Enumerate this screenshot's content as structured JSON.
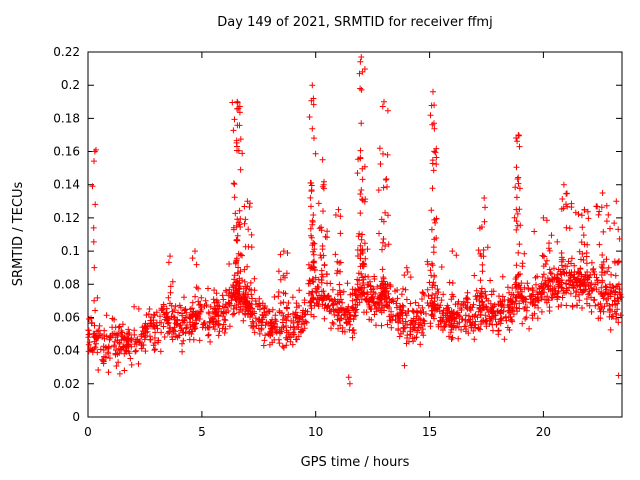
{
  "window": {
    "background": "#ffffff"
  },
  "chart_data": {
    "type": "scatter",
    "title": "Day 149 of 2021, SRMTID for receiver ffmj",
    "xlabel": "GPS time / hours",
    "ylabel": "SRMTID / TECUs",
    "xlim": [
      0,
      23.45
    ],
    "ylim": [
      0,
      0.22
    ],
    "grid": false,
    "legend": "none",
    "xticks": {
      "values": [
        0,
        5,
        10,
        15,
        20
      ],
      "labels": [
        "0",
        "5",
        "10",
        "15",
        "20"
      ]
    },
    "yticks": {
      "values": [
        0,
        0.02,
        0.04,
        0.06,
        0.08,
        0.1,
        0.12,
        0.14,
        0.16,
        0.18,
        0.2,
        0.22
      ],
      "labels": [
        "0",
        "0.02",
        "0.04",
        "0.06",
        "0.08",
        "0.1",
        "0.12",
        "0.14",
        "0.16",
        "0.18",
        "0.2",
        "0.22"
      ]
    },
    "marker": {
      "shape": "plus",
      "color": "#ff0000",
      "size": 7
    },
    "colors": {
      "frame": "#000000",
      "text": "#000000",
      "background": "#ffffff"
    },
    "point_model": {
      "seed": 149,
      "n_base": 1650,
      "x_range": [
        0,
        23.42
      ],
      "spread": 0.012,
      "tail_prob": 0.1,
      "tail_gain": 0.035,
      "y_min": 0.02,
      "y_max": 0.218,
      "baseline_knots": [
        [
          0.0,
          0.05
        ],
        [
          0.5,
          0.046
        ],
        [
          1.0,
          0.043
        ],
        [
          1.5,
          0.044
        ],
        [
          2.0,
          0.046
        ],
        [
          2.5,
          0.05
        ],
        [
          3.0,
          0.053
        ],
        [
          3.5,
          0.056
        ],
        [
          4.0,
          0.056
        ],
        [
          4.5,
          0.058
        ],
        [
          5.0,
          0.058
        ],
        [
          5.5,
          0.06
        ],
        [
          6.0,
          0.062
        ],
        [
          6.5,
          0.075
        ],
        [
          7.0,
          0.068
        ],
        [
          7.5,
          0.058
        ],
        [
          8.0,
          0.055
        ],
        [
          8.5,
          0.056
        ],
        [
          9.0,
          0.055
        ],
        [
          9.5,
          0.06
        ],
        [
          10.0,
          0.075
        ],
        [
          10.5,
          0.068
        ],
        [
          11.0,
          0.065
        ],
        [
          11.5,
          0.058
        ],
        [
          12.0,
          0.075
        ],
        [
          12.5,
          0.07
        ],
        [
          13.0,
          0.072
        ],
        [
          13.5,
          0.062
        ],
        [
          14.0,
          0.055
        ],
        [
          14.5,
          0.055
        ],
        [
          15.0,
          0.068
        ],
        [
          15.5,
          0.062
        ],
        [
          16.0,
          0.058
        ],
        [
          16.5,
          0.06
        ],
        [
          17.0,
          0.062
        ],
        [
          17.5,
          0.066
        ],
        [
          18.0,
          0.062
        ],
        [
          18.5,
          0.066
        ],
        [
          19.0,
          0.072
        ],
        [
          19.5,
          0.07
        ],
        [
          20.0,
          0.074
        ],
        [
          20.5,
          0.078
        ],
        [
          21.0,
          0.08
        ],
        [
          21.5,
          0.08
        ],
        [
          22.0,
          0.078
        ],
        [
          22.5,
          0.072
        ],
        [
          23.0,
          0.068
        ],
        [
          23.42,
          0.07
        ]
      ],
      "spikes": [
        {
          "x": 0.3,
          "width": 0.15,
          "count": 12,
          "max": 0.16
        },
        {
          "x": 3.6,
          "width": 0.3,
          "count": 10,
          "max": 0.097
        },
        {
          "x": 4.7,
          "width": 0.2,
          "count": 8,
          "max": 0.1
        },
        {
          "x": 6.55,
          "width": 0.25,
          "count": 60,
          "max": 0.19
        },
        {
          "x": 7.0,
          "width": 0.3,
          "count": 25,
          "max": 0.13
        },
        {
          "x": 8.6,
          "width": 0.3,
          "count": 12,
          "max": 0.1
        },
        {
          "x": 9.85,
          "width": 0.2,
          "count": 40,
          "max": 0.2
        },
        {
          "x": 10.3,
          "width": 0.3,
          "count": 30,
          "max": 0.155
        },
        {
          "x": 11.0,
          "width": 0.25,
          "count": 15,
          "max": 0.125
        },
        {
          "x": 12.0,
          "width": 0.25,
          "count": 55,
          "max": 0.217
        },
        {
          "x": 13.0,
          "width": 0.3,
          "count": 40,
          "max": 0.19
        },
        {
          "x": 14.0,
          "width": 0.3,
          "count": 10,
          "max": 0.09
        },
        {
          "x": 15.15,
          "width": 0.25,
          "count": 45,
          "max": 0.196
        },
        {
          "x": 16.0,
          "width": 0.3,
          "count": 10,
          "max": 0.1
        },
        {
          "x": 17.4,
          "width": 0.35,
          "count": 25,
          "max": 0.132
        },
        {
          "x": 18.9,
          "width": 0.25,
          "count": 35,
          "max": 0.17
        },
        {
          "x": 20.0,
          "width": 0.5,
          "count": 25,
          "max": 0.12
        },
        {
          "x": 20.9,
          "width": 0.4,
          "count": 30,
          "max": 0.14
        },
        {
          "x": 21.8,
          "width": 0.5,
          "count": 35,
          "max": 0.125
        },
        {
          "x": 22.6,
          "width": 0.4,
          "count": 25,
          "max": 0.135
        },
        {
          "x": 23.2,
          "width": 0.2,
          "count": 15,
          "max": 0.13
        }
      ],
      "extra_points": [
        [
          1.4,
          0.026
        ],
        [
          1.6,
          0.028
        ],
        [
          0.9,
          0.027
        ],
        [
          11.45,
          0.024
        ],
        [
          11.5,
          0.02
        ],
        [
          13.9,
          0.031
        ],
        [
          23.3,
          0.025
        ],
        [
          0.35,
          0.161
        ],
        [
          6.55,
          0.19
        ],
        [
          6.6,
          0.186
        ],
        [
          9.85,
          0.2
        ],
        [
          9.9,
          0.192
        ],
        [
          12.0,
          0.217
        ],
        [
          12.05,
          0.208
        ],
        [
          11.95,
          0.198
        ],
        [
          13.0,
          0.19
        ],
        [
          15.15,
          0.196
        ],
        [
          15.2,
          0.188
        ],
        [
          18.9,
          0.17
        ],
        [
          18.95,
          0.163
        ]
      ]
    },
    "notable_points_note": "peaks: ~0.16 @0.3h, ~0.19 @6.5h, ~0.20 @9.9h, ~0.217 @12h, ~0.19 @13h, ~0.196 @15.2h, ~0.17 @18.9h; baseline band 0.03-0.09 TECUs"
  }
}
